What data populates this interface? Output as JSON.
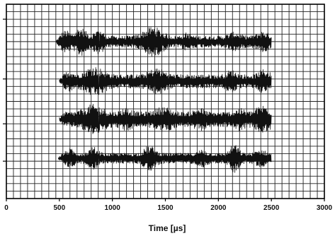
{
  "chart_data": {
    "type": "line",
    "title": "",
    "xlabel": "Time [µs]",
    "ylabel": "",
    "xlim": [
      0,
      3000
    ],
    "x_ticks": [
      0,
      500,
      1000,
      1500,
      2000,
      2500,
      3000
    ],
    "x_tick_labels": [
      "0",
      "500",
      "1000",
      "1500",
      "2000",
      "2500",
      "3000"
    ],
    "grid": true,
    "grid_color": "#222222",
    "trace_color": "#111111",
    "series": [
      {
        "start": 470,
        "end": 2500,
        "amplitude": 0.38,
        "bursts": [
          {
            "x": 560,
            "w": 55,
            "a": 0.75
          },
          {
            "x": 700,
            "w": 65,
            "a": 0.95
          },
          {
            "x": 870,
            "w": 55,
            "a": 0.85
          },
          {
            "x": 1380,
            "w": 110,
            "a": 1.0
          },
          {
            "x": 1700,
            "w": 55,
            "a": 0.6
          },
          {
            "x": 2150,
            "w": 70,
            "a": 0.65
          },
          {
            "x": 2420,
            "w": 70,
            "a": 0.7
          }
        ]
      },
      {
        "start": 500,
        "end": 2500,
        "amplitude": 0.45,
        "bursts": [
          {
            "x": 600,
            "w": 45,
            "a": 0.75
          },
          {
            "x": 830,
            "w": 110,
            "a": 1.0
          },
          {
            "x": 1420,
            "w": 90,
            "a": 0.9
          },
          {
            "x": 2120,
            "w": 60,
            "a": 0.75
          },
          {
            "x": 2430,
            "w": 60,
            "a": 0.8
          }
        ]
      },
      {
        "start": 500,
        "end": 2500,
        "amplitude": 0.5,
        "bursts": [
          {
            "x": 820,
            "w": 110,
            "a": 1.0
          },
          {
            "x": 1130,
            "w": 60,
            "a": 0.8
          },
          {
            "x": 1480,
            "w": 90,
            "a": 0.85
          },
          {
            "x": 1820,
            "w": 60,
            "a": 0.8
          },
          {
            "x": 2200,
            "w": 60,
            "a": 0.75
          },
          {
            "x": 2420,
            "w": 80,
            "a": 0.95
          }
        ]
      },
      {
        "start": 490,
        "end": 2500,
        "amplitude": 0.35,
        "bursts": [
          {
            "x": 600,
            "w": 45,
            "a": 0.65
          },
          {
            "x": 820,
            "w": 55,
            "a": 0.75
          },
          {
            "x": 1350,
            "w": 65,
            "a": 0.85
          },
          {
            "x": 1850,
            "w": 50,
            "a": 0.6
          },
          {
            "x": 2150,
            "w": 50,
            "a": 0.95
          },
          {
            "x": 2400,
            "w": 55,
            "a": 0.6
          }
        ]
      }
    ]
  }
}
